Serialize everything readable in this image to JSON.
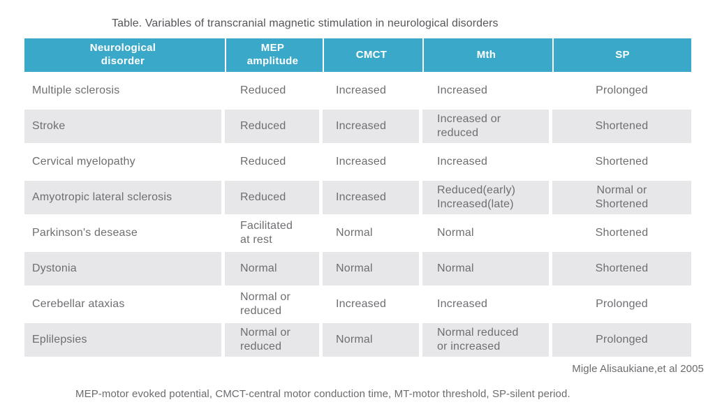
{
  "title": "Table. Variables of transcranial magnetic stimulation in neurological disorders",
  "table": {
    "headers": [
      "Neurological\ndisorder",
      "MEP\namplitude",
      "CMCT",
      "Mth",
      "SP"
    ],
    "rows": [
      {
        "shaded": false,
        "cells": [
          "Multiple sclerosis",
          "Reduced",
          "Increased",
          "Increased",
          "Prolonged"
        ]
      },
      {
        "shaded": true,
        "cells": [
          "Stroke",
          "Reduced",
          "Increased",
          "Increased or\nreduced",
          "Shortened"
        ]
      },
      {
        "shaded": false,
        "cells": [
          "Cervical myelopathy",
          "Reduced",
          "Increased",
          "Increased",
          "Shortened"
        ]
      },
      {
        "shaded": true,
        "cells": [
          "Amyotropic lateral sclerosis",
          "Reduced",
          "Increased",
          "Reduced(early)\nIncreased(late)",
          "Normal or\nShortened"
        ]
      },
      {
        "shaded": false,
        "cells": [
          "Parkinson's desease",
          "Facilitated\nat rest",
          "Normal",
          "Normal",
          "Shortened"
        ]
      },
      {
        "shaded": true,
        "cells": [
          "Dystonia",
          "Normal",
          "Normal",
          "Normal",
          "Shortened"
        ]
      },
      {
        "shaded": false,
        "cells": [
          "Cerebellar ataxias",
          "Normal or\nreduced",
          "Increased",
          "Increased",
          "Prolonged"
        ]
      },
      {
        "shaded": true,
        "cells": [
          "Eplilepsies",
          "Normal or\nreduced",
          "Normal",
          "Normal reduced\nor increased",
          "Prolonged"
        ]
      }
    ]
  },
  "attribution": "Migle Alisaukiane,et al 2005",
  "footnote": "MEP-motor evoked potential, CMCT-central motor conduction time, MT-motor threshold, SP-silent period.",
  "colors": {
    "header_bg": "#3aa9c9",
    "header_text": "#ffffff",
    "row_alt_bg": "#e7e7e9",
    "body_text": "#6d6e71"
  }
}
